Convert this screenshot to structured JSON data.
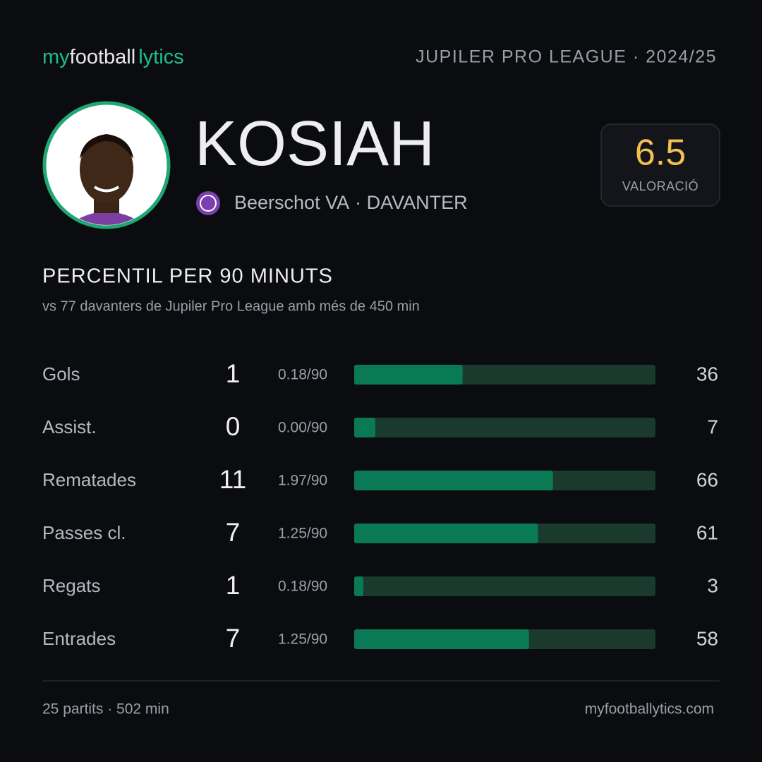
{
  "header": {
    "logo": [
      "my",
      "football",
      "lytics"
    ],
    "league": "JUPILER PRO LEAGUE · 2024/25"
  },
  "player": {
    "name": "KOSIAH",
    "club": "Beerschot VA",
    "position": "· DAVANTER"
  },
  "rating": {
    "value": 6.5,
    "label": "VALORACIÓ"
  },
  "section": {
    "title": "PERCENTIL PER 90 MINUTS",
    "subtitle": "vs 77 davanters de Jupiler Pro League amb més de 450 min"
  },
  "stats": [
    {
      "label": "Gols",
      "total": 1,
      "per90": "0.18/90",
      "percentile": 36
    },
    {
      "label": "Assist.",
      "total": 0,
      "per90": "0.00/90",
      "percentile": 7
    },
    {
      "label": "Rematades",
      "total": 11,
      "per90": "1.97/90",
      "percentile": 66
    },
    {
      "label": "Passes cl.",
      "total": 7,
      "per90": "1.25/90",
      "percentile": 61
    },
    {
      "label": "Regats",
      "total": 1,
      "per90": "0.18/90",
      "percentile": 3
    },
    {
      "label": "Entrades",
      "total": 7,
      "per90": "1.25/90",
      "percentile": 58
    }
  ],
  "footer": {
    "summary": "25 partits · 502 min",
    "site": "myfootballytics.com"
  }
}
